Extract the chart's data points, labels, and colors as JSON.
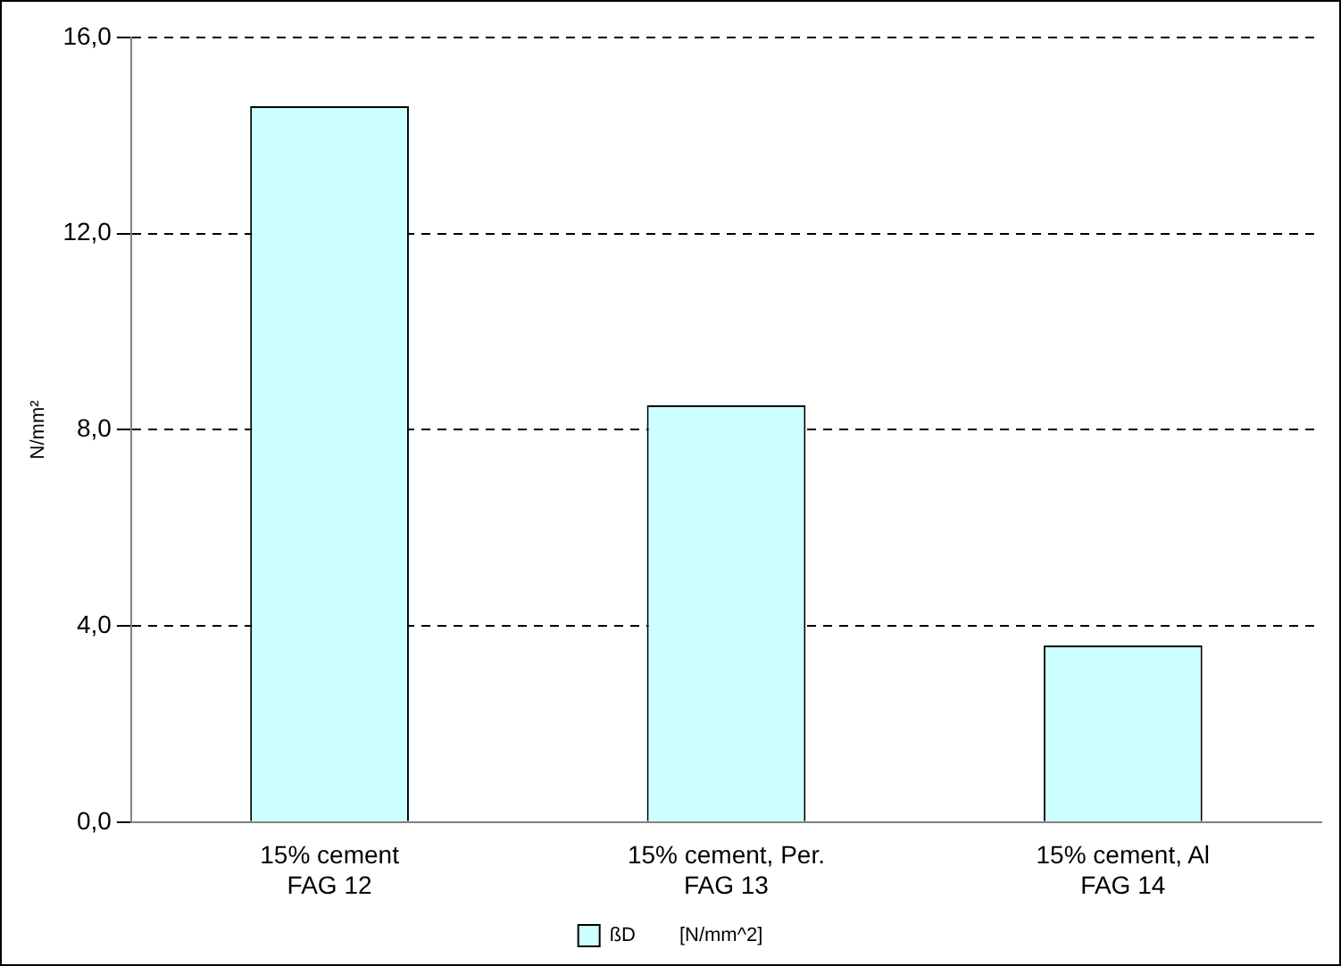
{
  "chart_data": {
    "type": "bar",
    "ylabel": "N/mm²",
    "categories": [
      "15% cement\nFAG 12",
      "15% cement, Per.\nFAG 13",
      "15% cement, Al\nFAG 14"
    ],
    "series": [
      {
        "name": "ßD        [N/mm^2]",
        "color": "#ccffff",
        "values": [
          14.6,
          8.5,
          3.6
        ]
      }
    ],
    "ylim": [
      0,
      16
    ],
    "yticks": [
      {
        "value": 0,
        "label": "0,0"
      },
      {
        "value": 4,
        "label": "4,0"
      },
      {
        "value": 8,
        "label": "8,0"
      },
      {
        "value": 12,
        "label": "12,0"
      },
      {
        "value": 16,
        "label": "16,0"
      }
    ],
    "grid": "y",
    "legend": "bottom"
  }
}
